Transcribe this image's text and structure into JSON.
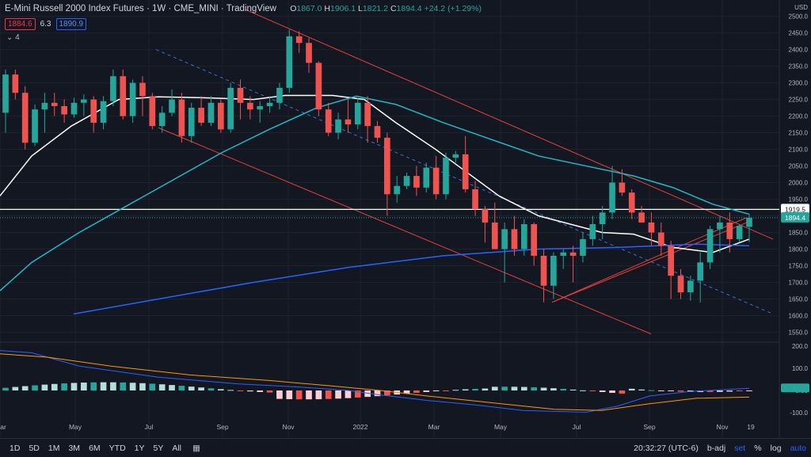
{
  "header": {
    "title": "E-Mini Russell 2000 Index Futures · 1W · CME_MINI · TradingView",
    "ohlc": {
      "o_label": "O",
      "o": "1867.0",
      "h_label": "H",
      "h": "1906.1",
      "l_label": "L",
      "l": "1821.2",
      "c_label": "C",
      "c": "1894.4",
      "change": "+24.2 (+1.29%)"
    },
    "bid": "1884.6",
    "spread": "6.3",
    "ask": "1890.9",
    "indicators_count": "4"
  },
  "axis": {
    "currency": "USD",
    "ticks": [
      "2500.0",
      "2450.0",
      "2400.0",
      "2350.0",
      "2300.0",
      "2250.0",
      "2200.0",
      "2150.0",
      "2100.0",
      "2050.0",
      "2000.0",
      "1950.0",
      "1900.0",
      "1850.0",
      "1800.0",
      "1750.0",
      "1700.0",
      "1650.0",
      "1600.0",
      "1550.0"
    ],
    "osc_ticks": [
      "200.0",
      "100.0",
      "0.00",
      "-100.0"
    ],
    "x_labels": [
      "ar",
      "May",
      "Jul",
      "Sep",
      "Nov",
      "2022",
      "Mar",
      "May",
      "Jul",
      "Sep",
      "Nov",
      "19"
    ],
    "last_price_label": "1894.4",
    "line_label": "1919.5"
  },
  "colors": {
    "up": "#26a69a",
    "down": "#ef5350",
    "sma_short": "#ffffff",
    "sma_mid": "#22b8c8",
    "sma_long": "#2962ff",
    "trend": "#e0413a",
    "bg": "#131722"
  },
  "bottombar": {
    "timeframes": [
      "1D",
      "5D",
      "1M",
      "3M",
      "6M",
      "YTD",
      "1Y",
      "5Y",
      "All"
    ],
    "calendar_icon": "calendar-icon",
    "time": "20:32:27 (UTC-6)",
    "badj": "b-adj",
    "set": "set",
    "percent": "%",
    "log": "log",
    "auto": "auto"
  },
  "chart_data": {
    "type": "candlestick",
    "y_range": [
      1525,
      2530
    ],
    "horizontal_line": 1919.5,
    "last_price": 1894.4,
    "candles": [
      [
        2210,
        2340,
        2150,
        2325
      ],
      [
        2325,
        2340,
        2250,
        2270
      ],
      [
        2270,
        2290,
        2100,
        2120
      ],
      [
        2120,
        2235,
        2110,
        2220
      ],
      [
        2220,
        2270,
        2150,
        2240
      ],
      [
        2240,
        2270,
        2200,
        2230
      ],
      [
        2230,
        2250,
        2180,
        2205
      ],
      [
        2205,
        2255,
        2195,
        2240
      ],
      [
        2240,
        2265,
        2200,
        2250
      ],
      [
        2250,
        2260,
        2150,
        2180
      ],
      [
        2180,
        2260,
        2160,
        2245
      ],
      [
        2245,
        2340,
        2230,
        2320
      ],
      [
        2320,
        2340,
        2190,
        2200
      ],
      [
        2200,
        2310,
        2180,
        2300
      ],
      [
        2300,
        2320,
        2200,
        2260
      ],
      [
        2260,
        2270,
        2160,
        2170
      ],
      [
        2170,
        2230,
        2150,
        2210
      ],
      [
        2210,
        2280,
        2200,
        2250
      ],
      [
        2250,
        2270,
        2120,
        2140
      ],
      [
        2140,
        2240,
        2120,
        2225
      ],
      [
        2225,
        2260,
        2170,
        2180
      ],
      [
        2180,
        2260,
        2170,
        2240
      ],
      [
        2240,
        2250,
        2150,
        2160
      ],
      [
        2160,
        2300,
        2150,
        2285
      ],
      [
        2285,
        2310,
        2190,
        2240
      ],
      [
        2240,
        2260,
        2190,
        2220
      ],
      [
        2220,
        2245,
        2180,
        2230
      ],
      [
        2230,
        2260,
        2210,
        2240
      ],
      [
        2240,
        2300,
        2220,
        2285
      ],
      [
        2285,
        2460,
        2270,
        2440
      ],
      [
        2440,
        2455,
        2390,
        2420
      ],
      [
        2420,
        2435,
        2330,
        2360
      ],
      [
        2360,
        2365,
        2200,
        2220
      ],
      [
        2220,
        2240,
        2140,
        2150
      ],
      [
        2150,
        2210,
        2130,
        2190
      ],
      [
        2190,
        2250,
        2150,
        2175
      ],
      [
        2175,
        2255,
        2160,
        2240
      ],
      [
        2240,
        2260,
        2120,
        2170
      ],
      [
        2170,
        2185,
        2120,
        2135
      ],
      [
        2135,
        2150,
        1900,
        1965
      ],
      [
        1965,
        2020,
        1940,
        1990
      ],
      [
        1990,
        2030,
        1980,
        2020
      ],
      [
        2020,
        2050,
        1960,
        1985
      ],
      [
        1985,
        2060,
        1970,
        2045
      ],
      [
        2045,
        2080,
        1950,
        1965
      ],
      [
        1965,
        2090,
        1950,
        2075
      ],
      [
        2075,
        2095,
        2060,
        2085
      ],
      [
        2085,
        2140,
        1970,
        1980
      ],
      [
        1980,
        2005,
        1900,
        1920
      ],
      [
        1920,
        1930,
        1820,
        1880
      ],
      [
        1880,
        1940,
        1800,
        1800
      ],
      [
        1800,
        1880,
        1700,
        1860
      ],
      [
        1860,
        1900,
        1780,
        1800
      ],
      [
        1800,
        1890,
        1780,
        1875
      ],
      [
        1875,
        1880,
        1750,
        1780
      ],
      [
        1780,
        1800,
        1640,
        1690
      ],
      [
        1690,
        1790,
        1650,
        1780
      ],
      [
        1780,
        1800,
        1740,
        1790
      ],
      [
        1790,
        1810,
        1700,
        1780
      ],
      [
        1780,
        1850,
        1760,
        1830
      ],
      [
        1830,
        1900,
        1810,
        1875
      ],
      [
        1875,
        1930,
        1830,
        1910
      ],
      [
        1910,
        2050,
        1890,
        2000
      ],
      [
        2000,
        2040,
        1960,
        1970
      ],
      [
        1970,
        1980,
        1890,
        1910
      ],
      [
        1910,
        1930,
        1880,
        1880
      ],
      [
        1880,
        1910,
        1810,
        1850
      ],
      [
        1850,
        1880,
        1780,
        1810
      ],
      [
        1810,
        1825,
        1650,
        1720
      ],
      [
        1720,
        1740,
        1650,
        1670
      ],
      [
        1670,
        1720,
        1645,
        1705
      ],
      [
        1705,
        1790,
        1640,
        1760
      ],
      [
        1760,
        1870,
        1740,
        1860
      ],
      [
        1860,
        1900,
        1790,
        1880
      ],
      [
        1880,
        1910,
        1790,
        1830
      ],
      [
        1830,
        1875,
        1820,
        1870
      ],
      [
        1867,
        1906.1,
        1821.2,
        1894.4
      ]
    ]
  }
}
